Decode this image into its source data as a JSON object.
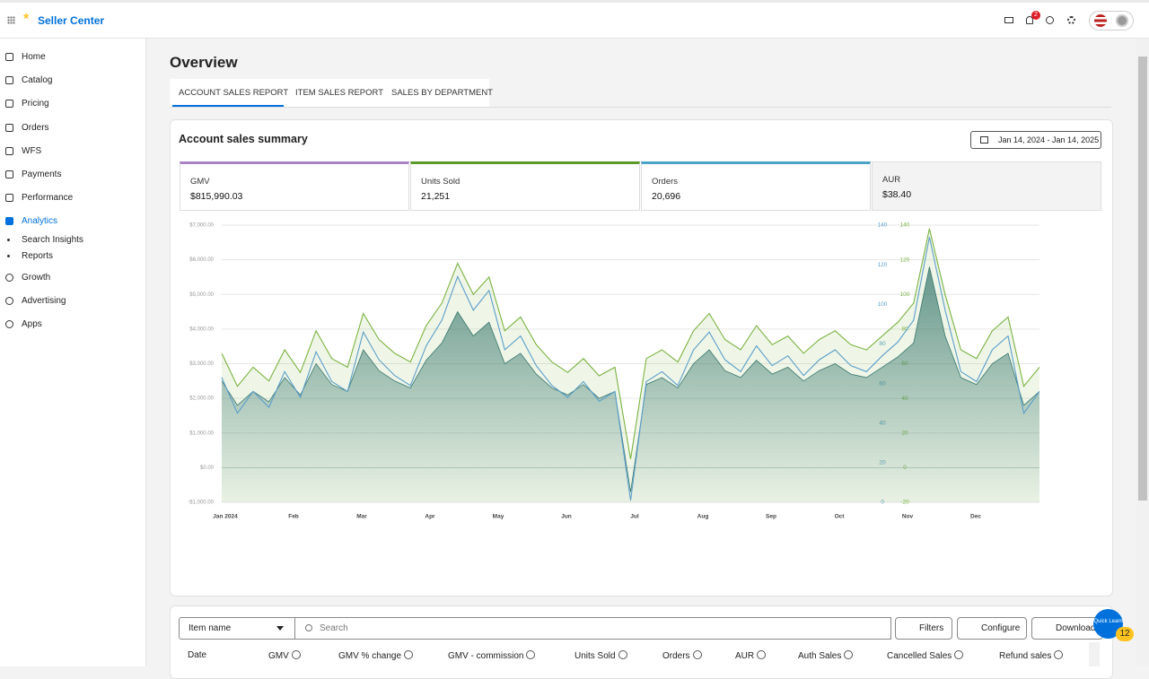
{
  "header": {
    "brand": "Seller Center",
    "notification_count": 2
  },
  "sidebar": {
    "items": [
      "Home",
      "Catalog",
      "Pricing",
      "Orders",
      "WFS",
      "Payments",
      "Performance",
      "Analytics"
    ],
    "sub_items": [
      "Search Insights",
      "Reports"
    ],
    "more_items": [
      "Growth",
      "Advertising",
      "Apps"
    ]
  },
  "page_title": "Overview",
  "tabs": [
    "ACCOUNT SALES REPORT",
    "ITEM SALES REPORT",
    "SALES BY DEPARTMENT"
  ],
  "card_title": "Account sales summary",
  "date_range": "Jan 14, 2024 - Jan 14, 2025",
  "metrics": [
    {
      "label": "GMV",
      "value": "$815,990.03"
    },
    {
      "label": "Units Sold",
      "value": "21,251"
    },
    {
      "label": "Orders",
      "value": "20,696"
    },
    {
      "label": "AUR",
      "value": "$38.40"
    }
  ],
  "chart_data": {
    "type": "line",
    "months": [
      "Jan 2024",
      "Feb",
      "Mar",
      "Apr",
      "May",
      "Jun",
      "Jul",
      "Aug",
      "Sep",
      "Oct",
      "Nov",
      "Dec"
    ],
    "ylim": [
      -1000,
      7000
    ],
    "yticks": [
      {
        "value": -1000,
        "label": "-$1,000.00"
      },
      {
        "value": 0,
        "label": "$0.00"
      },
      {
        "value": 1000,
        "label": "$1,000.00"
      },
      {
        "value": 2000,
        "label": "$2,000.00"
      },
      {
        "value": 3000,
        "label": "$3,000.00"
      },
      {
        "value": 4000,
        "label": "$4,000.00"
      },
      {
        "value": 5000,
        "label": "$5,000.00"
      },
      {
        "value": 6000,
        "label": "$6,000.00"
      },
      {
        "value": 7000,
        "label": "$7,000.00"
      }
    ],
    "y2lim": [
      0,
      140
    ],
    "y2ticks": [
      0,
      20,
      40,
      60,
      80,
      100,
      120,
      140
    ],
    "y3lim": [
      -20,
      140
    ],
    "y3ticks": [
      -20,
      0,
      20,
      40,
      60,
      80,
      100,
      120,
      140
    ],
    "grid": true,
    "series": [
      {
        "name": "GMV",
        "color": "#2f6f73",
        "values": [
          2500,
          1800,
          2200,
          1900,
          2600,
          2100,
          3000,
          2400,
          2200,
          3400,
          2800,
          2500,
          2300,
          3100,
          3600,
          4500,
          3800,
          4200,
          3000,
          3300,
          2700,
          2300,
          2100,
          2400,
          2000,
          2200,
          -700,
          2400,
          2600,
          2300,
          3000,
          3400,
          2800,
          2600,
          3100,
          2700,
          2900,
          2500,
          2800,
          3000,
          2700,
          2600,
          2900,
          3200,
          3600,
          5800,
          3800,
          2600,
          2400,
          3000,
          3300,
          1800,
          2200
        ]
      },
      {
        "name": "Units Sold",
        "color": "#7cb342",
        "axis": "y3",
        "values": [
          66,
          47,
          58,
          50,
          68,
          55,
          79,
          63,
          58,
          89,
          74,
          66,
          61,
          82,
          95,
          118,
          100,
          110,
          79,
          87,
          71,
          61,
          55,
          63,
          53,
          58,
          5,
          63,
          68,
          61,
          79,
          89,
          74,
          68,
          82,
          71,
          76,
          66,
          74,
          79,
          71,
          68,
          76,
          84,
          95,
          138,
          100,
          68,
          63,
          79,
          87,
          47,
          58
        ]
      },
      {
        "name": "Orders",
        "color": "#5b9ec9",
        "axis": "y2",
        "values": [
          63,
          45,
          56,
          48,
          66,
          53,
          76,
          61,
          56,
          86,
          72,
          64,
          59,
          79,
          92,
          114,
          97,
          107,
          77,
          84,
          69,
          59,
          53,
          61,
          51,
          56,
          1,
          61,
          66,
          59,
          77,
          86,
          72,
          66,
          79,
          69,
          74,
          64,
          72,
          77,
          69,
          66,
          74,
          81,
          92,
          134,
          97,
          66,
          61,
          77,
          84,
          45,
          56
        ]
      }
    ]
  },
  "table": {
    "filter_select": "Item name",
    "search_placeholder": "Search",
    "buttons": [
      "Filters",
      "Configure",
      "Download"
    ],
    "columns": [
      "Date",
      "GMV",
      "GMV % change",
      "GMV - commission",
      "Units Sold",
      "Orders",
      "AUR",
      "Auth Sales",
      "Cancelled Sales",
      "Refund sales"
    ]
  },
  "quick_learn": {
    "label": "Quick Learn",
    "badge": 12
  }
}
